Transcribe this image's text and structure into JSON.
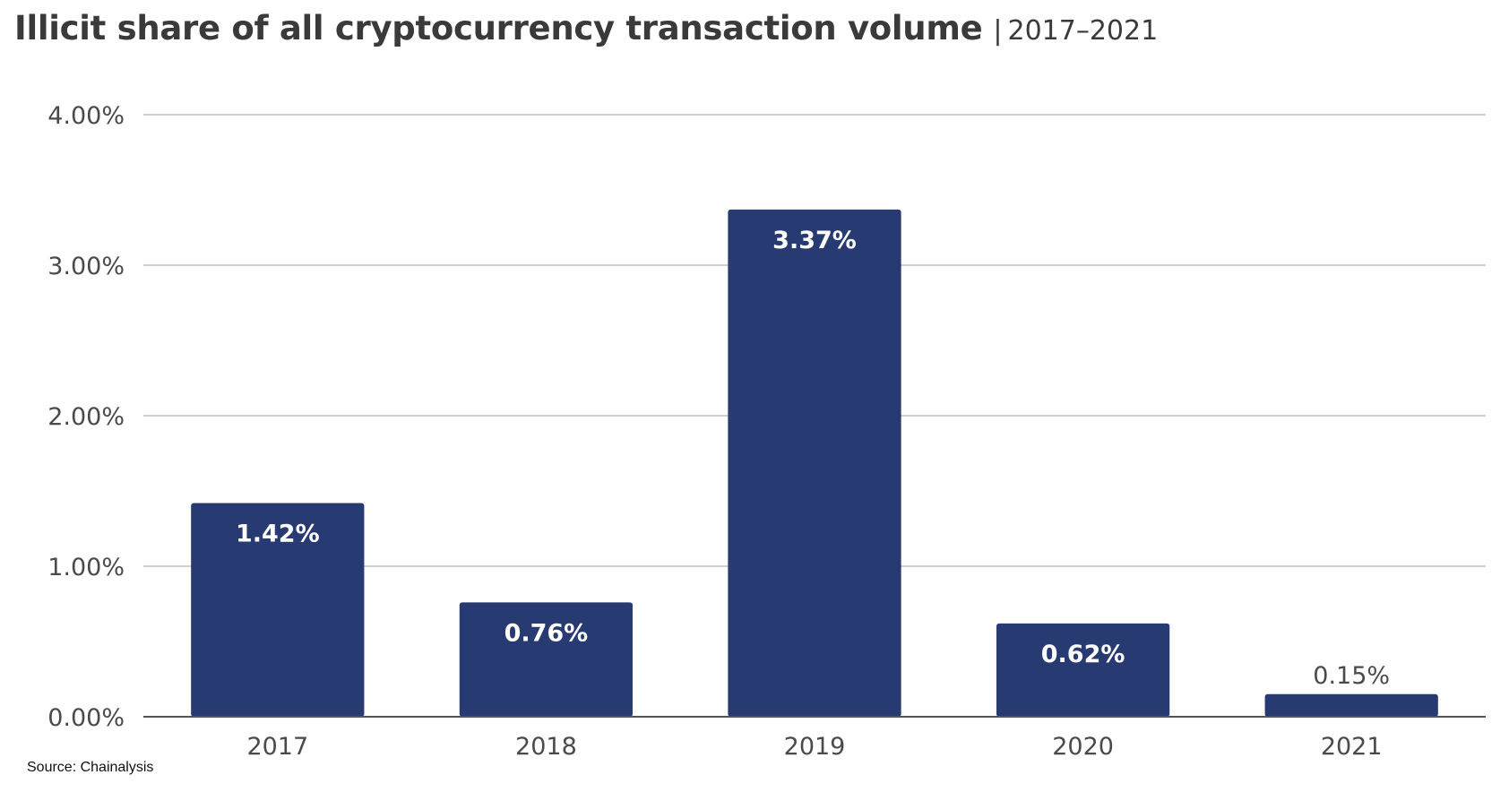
{
  "chart_data": {
    "type": "bar",
    "title": "Illicit share of all cryptocurrency transaction volume",
    "subtitle": "2017–2021",
    "title_separator": "|",
    "categories": [
      "2017",
      "2018",
      "2019",
      "2020",
      "2021"
    ],
    "values": [
      1.42,
      0.76,
      3.37,
      0.62,
      0.15
    ],
    "data_labels": [
      "1.42%",
      "0.76%",
      "3.37%",
      "0.62%",
      "0.15%"
    ],
    "y_ticks": [
      0,
      1,
      2,
      3,
      4
    ],
    "y_tick_labels": [
      "0.00%",
      "1.00%",
      "2.00%",
      "3.00%",
      "4.00%"
    ],
    "ylim": [
      0,
      4
    ],
    "xlabel": "",
    "ylabel": "",
    "grid": true,
    "bar_color": "#283a72",
    "source": "Source: Chainalysis"
  }
}
